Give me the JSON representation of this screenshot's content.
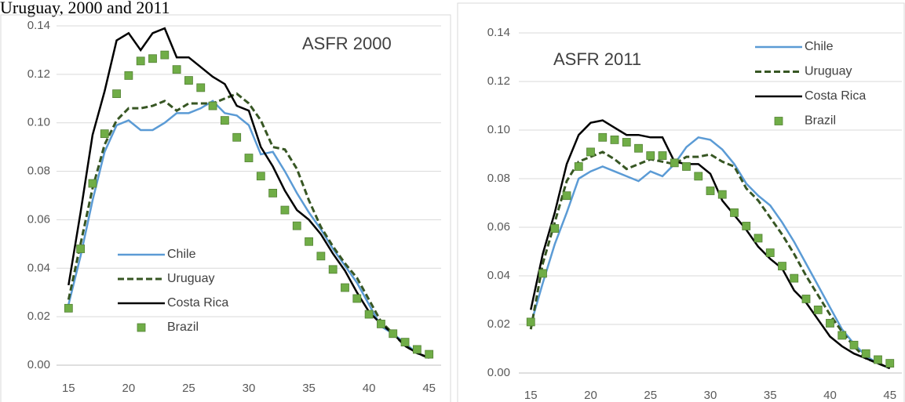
{
  "title": "Uruguay, 2000 and 2011",
  "chart_data": [
    {
      "type": "line",
      "annotation": "ASFR 2000",
      "legend": "lower left",
      "grid": true,
      "x": [
        15,
        16,
        17,
        18,
        19,
        20,
        21,
        22,
        23,
        24,
        25,
        26,
        27,
        28,
        29,
        30,
        31,
        32,
        33,
        34,
        35,
        36,
        37,
        38,
        39,
        40,
        41,
        42,
        43,
        44,
        45
      ],
      "xlim": [
        14,
        46
      ],
      "xticks": [
        15,
        20,
        25,
        30,
        35,
        40,
        45
      ],
      "ylim": [
        0,
        0.14
      ],
      "yticks": [
        {
          "value": 0,
          "label": "0.00"
        },
        {
          "value": 0.02,
          "label": "0.02"
        },
        {
          "value": 0.04,
          "label": "0.04"
        },
        {
          "value": 0.06,
          "label": "0.06"
        },
        {
          "value": 0.08,
          "label": "0.08"
        },
        {
          "value": 0.1,
          "label": "0.10"
        },
        {
          "value": 0.12,
          "label": "0.12"
        },
        {
          "value": 0.14,
          "label": "0.14"
        }
      ],
      "series": [
        {
          "name": "Chile",
          "color": "#5b9bd5",
          "line_style": "solid",
          "values": [
            0.025,
            0.045,
            0.068,
            0.088,
            0.099,
            0.101,
            0.097,
            0.097,
            0.1,
            0.104,
            0.104,
            0.106,
            0.109,
            0.104,
            0.103,
            0.099,
            0.087,
            0.088,
            0.08,
            0.071,
            0.063,
            0.056,
            0.048,
            0.041,
            0.034,
            0.025,
            0.016,
            0.013,
            0.009,
            0.005,
            0.003
          ]
        },
        {
          "name": "Uruguay",
          "color": "#375623",
          "line_style": "dashed",
          "values": [
            0.027,
            0.05,
            0.073,
            0.091,
            0.101,
            0.106,
            0.106,
            0.107,
            0.109,
            0.105,
            0.108,
            0.108,
            0.108,
            0.11,
            0.112,
            0.108,
            0.101,
            0.09,
            0.089,
            0.081,
            0.068,
            0.057,
            0.049,
            0.042,
            0.036,
            0.027,
            0.018,
            0.013,
            0.008,
            0.005,
            0.003
          ]
        },
        {
          "name": "Costa Rica",
          "color": "#000000",
          "line_style": "solid",
          "values": [
            0.033,
            0.063,
            0.095,
            0.113,
            0.134,
            0.137,
            0.13,
            0.137,
            0.139,
            0.127,
            0.127,
            0.123,
            0.119,
            0.116,
            0.107,
            0.105,
            0.09,
            0.082,
            0.072,
            0.064,
            0.06,
            0.054,
            0.046,
            0.039,
            0.03,
            0.022,
            0.017,
            0.013,
            0.008,
            0.005,
            0.003
          ]
        },
        {
          "name": "Brazil",
          "color": "#70ad47",
          "line_style": "none",
          "marker": "square",
          "values": [
            0.0235,
            0.048,
            0.075,
            0.0955,
            0.112,
            0.1195,
            0.1255,
            0.1265,
            0.128,
            0.122,
            0.1175,
            0.1145,
            0.107,
            0.101,
            0.094,
            0.0855,
            0.078,
            0.071,
            0.064,
            0.0575,
            0.051,
            0.045,
            0.0395,
            0.032,
            0.0275,
            0.021,
            0.017,
            0.013,
            0.0095,
            0.0065,
            0.0045
          ]
        }
      ]
    },
    {
      "type": "line",
      "annotation": "ASFR 2011",
      "legend": "upper right",
      "grid": true,
      "x": [
        15,
        16,
        17,
        18,
        19,
        20,
        21,
        22,
        23,
        24,
        25,
        26,
        27,
        28,
        29,
        30,
        31,
        32,
        33,
        34,
        35,
        36,
        37,
        38,
        39,
        40,
        41,
        42,
        43,
        44,
        45
      ],
      "xlim": [
        14,
        46
      ],
      "xticks": [
        15,
        20,
        25,
        30,
        35,
        40,
        45
      ],
      "ylim": [
        0,
        0.14
      ],
      "yticks": [
        {
          "value": 0,
          "label": "0.00"
        },
        {
          "value": 0.02,
          "label": "0.02"
        },
        {
          "value": 0.04,
          "label": "0.04"
        },
        {
          "value": 0.06,
          "label": "0.06"
        },
        {
          "value": 0.08,
          "label": "0.08"
        },
        {
          "value": 0.1,
          "label": "0.10"
        },
        {
          "value": 0.12,
          "label": "0.12"
        },
        {
          "value": 0.14,
          "label": "0.14"
        }
      ],
      "series": [
        {
          "name": "Chile",
          "color": "#5b9bd5",
          "line_style": "solid",
          "values": [
            0.02,
            0.037,
            0.053,
            0.066,
            0.08,
            0.083,
            0.085,
            0.083,
            0.081,
            0.079,
            0.083,
            0.081,
            0.086,
            0.093,
            0.097,
            0.096,
            0.092,
            0.086,
            0.078,
            0.073,
            0.069,
            0.062,
            0.054,
            0.045,
            0.036,
            0.027,
            0.018,
            0.012,
            0.007,
            0.004,
            0.002
          ]
        },
        {
          "name": "Uruguay",
          "color": "#375623",
          "line_style": "dashed",
          "values": [
            0.018,
            0.045,
            0.062,
            0.079,
            0.087,
            0.089,
            0.091,
            0.088,
            0.084,
            0.086,
            0.088,
            0.087,
            0.086,
            0.089,
            0.089,
            0.09,
            0.087,
            0.085,
            0.076,
            0.071,
            0.064,
            0.057,
            0.049,
            0.04,
            0.032,
            0.024,
            0.017,
            0.011,
            0.006,
            0.004,
            0.002
          ]
        },
        {
          "name": "Costa Rica",
          "color": "#000000",
          "line_style": "solid",
          "values": [
            0.026,
            0.049,
            0.066,
            0.086,
            0.098,
            0.103,
            0.104,
            0.101,
            0.098,
            0.098,
            0.097,
            0.097,
            0.087,
            0.086,
            0.086,
            0.082,
            0.071,
            0.065,
            0.059,
            0.052,
            0.047,
            0.043,
            0.034,
            0.029,
            0.022,
            0.015,
            0.011,
            0.008,
            0.006,
            0.004,
            0.002
          ]
        },
        {
          "name": "Brazil",
          "color": "#70ad47",
          "line_style": "none",
          "marker": "square",
          "values": [
            0.021,
            0.041,
            0.0595,
            0.073,
            0.085,
            0.091,
            0.097,
            0.096,
            0.095,
            0.0925,
            0.0895,
            0.0895,
            0.0865,
            0.085,
            0.081,
            0.075,
            0.0735,
            0.066,
            0.0605,
            0.0555,
            0.0495,
            0.044,
            0.039,
            0.0305,
            0.026,
            0.0205,
            0.0155,
            0.0115,
            0.008,
            0.0055,
            0.004
          ]
        }
      ]
    }
  ]
}
